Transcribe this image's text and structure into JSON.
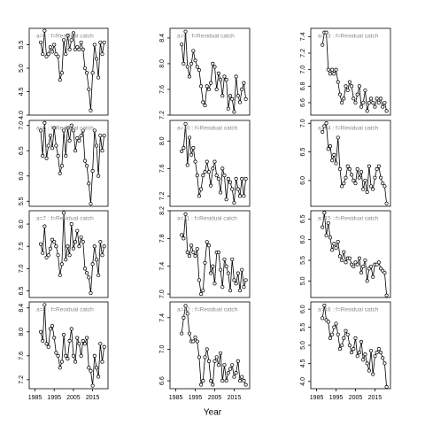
{
  "xlabel": "Year",
  "chart_data": [
    {
      "type": "line",
      "title": "a=5  :  f=Residual catch",
      "x": [
        1988,
        1989,
        1990,
        1991,
        1992,
        1993,
        1994,
        1995,
        1996,
        1997,
        1998,
        1999,
        2000,
        2001,
        2002,
        2003,
        2004,
        2005,
        2006,
        2007,
        2008,
        2009,
        2010,
        2011,
        2012,
        2013,
        2014,
        2015,
        2016,
        2017,
        2018,
        2019,
        2020,
        2021
      ],
      "values": [
        5.55,
        5.3,
        5.8,
        5.25,
        5.3,
        5.45,
        5.35,
        5.5,
        5.3,
        5.25,
        4.75,
        4.9,
        5.6,
        5.3,
        5.7,
        5.4,
        5.6,
        5.75,
        5.4,
        5.45,
        5.4,
        5.55,
        5.4,
        5.0,
        4.9,
        4.55,
        4.1,
        4.9,
        5.5,
        5.2,
        4.8,
        5.55,
        5.3,
        5.55
      ],
      "xlim": [
        1982,
        2023
      ],
      "ylim": [
        4.0,
        5.85
      ],
      "yticks": [
        {
          "value": 4,
          "label": "4.0"
        },
        4.5,
        {
          "value": 5,
          "label": "5.0"
        },
        5.5
      ]
    },
    {
      "type": "line",
      "title": "a=6  :  f=Residual catch",
      "x": [
        1988,
        1989,
        1990,
        1991,
        1992,
        1993,
        1994,
        1995,
        1996,
        1997,
        1998,
        1999,
        2000,
        2001,
        2002,
        2003,
        2004,
        2005,
        2006,
        2007,
        2008,
        2009,
        2010,
        2011,
        2012,
        2013,
        2014,
        2015,
        2016,
        2017,
        2018,
        2019,
        2020,
        2021
      ],
      "values": [
        6.9,
        6.4,
        7.05,
        6.35,
        6.6,
        6.8,
        6.55,
        6.95,
        6.6,
        6.4,
        6.05,
        6.2,
        6.9,
        6.4,
        6.95,
        6.7,
        7.0,
        6.9,
        6.5,
        6.75,
        6.7,
        6.8,
        6.9,
        6.3,
        6.2,
        5.85,
        5.45,
        6.1,
        6.9,
        6.6,
        6.0,
        6.8,
        6.5,
        6.8
      ],
      "xlim": [
        1982,
        2023
      ],
      "ylim": [
        5.4,
        7.1
      ],
      "yticks": [
        5.5,
        {
          "value": 6,
          "label": "6.0"
        },
        6.5,
        {
          "value": 7,
          "label": "7.0"
        }
      ]
    },
    {
      "type": "line",
      "title": "a=7  :  f=Residual catch",
      "x": [
        1988,
        1989,
        1990,
        1991,
        1992,
        1993,
        1994,
        1995,
        1996,
        1997,
        1998,
        1999,
        2000,
        2001,
        2002,
        2003,
        2004,
        2005,
        2006,
        2007,
        2008,
        2009,
        2010,
        2011,
        2012,
        2013,
        2014,
        2015,
        2016,
        2017,
        2018,
        2019,
        2020,
        2021
      ],
      "values": [
        7.55,
        7.35,
        7.95,
        7.25,
        7.3,
        7.45,
        7.65,
        7.6,
        7.5,
        7.3,
        6.85,
        7.1,
        8.25,
        7.2,
        7.5,
        7.3,
        8.0,
        7.45,
        7.6,
        7.85,
        7.5,
        7.7,
        7.6,
        7.0,
        6.9,
        6.8,
        6.45,
        7.1,
        7.5,
        7.2,
        6.85,
        7.6,
        7.3,
        7.5
      ],
      "xlim": [
        1982,
        2023
      ],
      "ylim": [
        6.35,
        8.3
      ],
      "yticks": [
        6.5,
        {
          "value": 7,
          "label": "7.0"
        },
        7.5,
        {
          "value": 8,
          "label": "8.0"
        }
      ]
    },
    {
      "type": "line",
      "title": "a=8  :  f=Residual catch",
      "x": [
        1988,
        1989,
        1990,
        1991,
        1992,
        1993,
        1994,
        1995,
        1996,
        1997,
        1998,
        1999,
        2000,
        2001,
        2002,
        2003,
        2004,
        2005,
        2006,
        2007,
        2008,
        2009,
        2010,
        2011,
        2012,
        2013,
        2014,
        2015,
        2016,
        2017,
        2018,
        2019,
        2020,
        2021
      ],
      "values": [
        8.0,
        7.85,
        8.45,
        7.8,
        7.75,
        8.05,
        8.1,
        7.9,
        7.65,
        7.6,
        7.4,
        7.5,
        7.95,
        7.6,
        7.55,
        7.85,
        8.05,
        7.6,
        7.5,
        7.9,
        7.8,
        7.6,
        7.85,
        7.8,
        7.9,
        7.4,
        7.35,
        7.1,
        7.6,
        7.4,
        7.25,
        7.8,
        7.5,
        7.75
      ],
      "xlim": [
        1982,
        2023
      ],
      "ylim": [
        7.05,
        8.5
      ],
      "yticks": [
        7.2,
        7.6,
        {
          "value": 8,
          "label": "8.0"
        },
        8.4
      ],
      "xticks": [
        1985,
        1995,
        2005,
        2015
      ]
    },
    {
      "type": "line",
      "title": "a=9  :  f=Residual catch",
      "x": [
        1988,
        1989,
        1990,
        1991,
        1992,
        1993,
        1994,
        1995,
        1996,
        1997,
        1998,
        1999,
        2000,
        2001,
        2002,
        2003,
        2004,
        2005,
        2006,
        2007,
        2008,
        2009,
        2010,
        2011,
        2012,
        2013,
        2014,
        2015,
        2016,
        2017,
        2018,
        2019,
        2020,
        2021
      ],
      "values": [
        8.3,
        8.0,
        8.5,
        7.95,
        7.8,
        8.0,
        8.2,
        8.05,
        7.95,
        7.9,
        7.65,
        7.4,
        7.35,
        7.65,
        7.6,
        7.7,
        8.0,
        7.95,
        7.6,
        7.85,
        7.75,
        7.5,
        7.8,
        7.75,
        7.3,
        7.5,
        7.45,
        7.25,
        7.8,
        7.5,
        7.4,
        7.6,
        7.7,
        7.45
      ],
      "xlim": [
        1982,
        2023
      ],
      "ylim": [
        7.2,
        8.55
      ],
      "yticks": [
        7.2,
        7.6,
        {
          "value": 8,
          "label": "8.0"
        },
        8.4
      ]
    },
    {
      "type": "line",
      "title": "a=10  :  f=Residual catch",
      "x": [
        1988,
        1989,
        1990,
        1991,
        1992,
        1993,
        1994,
        1995,
        1996,
        1997,
        1998,
        1999,
        2000,
        2001,
        2002,
        2003,
        2004,
        2005,
        2006,
        2007,
        2008,
        2009,
        2010,
        2011,
        2012,
        2013,
        2014,
        2015,
        2016,
        2017,
        2018,
        2019,
        2020,
        2021
      ],
      "values": [
        7.85,
        7.9,
        8.25,
        7.65,
        8.05,
        7.8,
        7.9,
        7.7,
        7.5,
        7.2,
        7.3,
        7.5,
        7.55,
        7.7,
        7.55,
        7.35,
        7.6,
        7.7,
        7.5,
        7.45,
        7.25,
        7.6,
        7.5,
        7.15,
        7.45,
        7.4,
        7.3,
        7.1,
        7.45,
        7.3,
        7.2,
        7.45,
        7.2,
        7.45
      ],
      "xlim": [
        1982,
        2023
      ],
      "ylim": [
        7.05,
        8.3
      ],
      "yticks": [
        7.2,
        7.6,
        {
          "value": 8,
          "label": "8.0"
        }
      ]
    },
    {
      "type": "line",
      "title": "a=11  :  f=Residual catch",
      "x": [
        1988,
        1989,
        1990,
        1991,
        1992,
        1993,
        1994,
        1995,
        1996,
        1997,
        1998,
        1999,
        2000,
        2001,
        2002,
        2003,
        2004,
        2005,
        2006,
        2007,
        2008,
        2009,
        2010,
        2011,
        2012,
        2013,
        2014,
        2015,
        2016,
        2017,
        2018,
        2019,
        2020,
        2021
      ],
      "values": [
        7.85,
        7.8,
        8.15,
        7.6,
        7.55,
        7.7,
        7.6,
        7.55,
        7.65,
        7.2,
        7.0,
        7.05,
        7.45,
        7.75,
        7.7,
        7.3,
        7.4,
        7.15,
        7.6,
        7.6,
        7.35,
        7.1,
        7.5,
        7.4,
        7.3,
        7.05,
        7.5,
        7.2,
        7.15,
        7.3,
        7.05,
        7.35,
        7.1,
        7.2
      ],
      "xlim": [
        1982,
        2023
      ],
      "ylim": [
        6.95,
        8.2
      ],
      "yticks": [
        {
          "value": 7,
          "label": "7.0"
        },
        7.4,
        7.8,
        8.2
      ]
    },
    {
      "type": "line",
      "title": "a=12  :  f=Residual catch",
      "x": [
        1988,
        1989,
        1990,
        1991,
        1992,
        1993,
        1994,
        1995,
        1996,
        1997,
        1998,
        1999,
        2000,
        2001,
        2002,
        2003,
        2004,
        2005,
        2006,
        2007,
        2008,
        2009,
        2010,
        2011,
        2012,
        2013,
        2014,
        2015,
        2016,
        2017,
        2018,
        2019,
        2020,
        2021
      ],
      "values": [
        7.2,
        7.4,
        7.55,
        7.45,
        7.2,
        7.1,
        7.1,
        7.15,
        7.1,
        6.9,
        6.55,
        6.6,
        6.9,
        7.0,
        6.85,
        6.6,
        6.55,
        6.85,
        6.9,
        6.8,
        6.95,
        6.6,
        6.8,
        6.6,
        6.7,
        6.75,
        6.8,
        6.65,
        6.7,
        6.85,
        6.6,
        6.65,
        6.6,
        6.55
      ],
      "xlim": [
        1982,
        2023
      ],
      "ylim": [
        6.5,
        7.6
      ],
      "yticks": [
        6.6,
        {
          "value": 7,
          "label": "7.0"
        },
        7.4
      ],
      "xticks": [
        1985,
        1995,
        2005,
        2015
      ]
    },
    {
      "type": "line",
      "title": "a=13  :  f=Residual catch",
      "x": [
        1988,
        1989,
        1990,
        1991,
        1992,
        1993,
        1994,
        1995,
        1996,
        1997,
        1998,
        1999,
        2000,
        2001,
        2002,
        2003,
        2004,
        2005,
        2006,
        2007,
        2008,
        2009,
        2010,
        2011,
        2012,
        2013,
        2014,
        2015,
        2016,
        2017,
        2018,
        2019,
        2020,
        2021
      ],
      "values": [
        7.3,
        7.45,
        7.45,
        7.0,
        6.95,
        7.0,
        6.95,
        7.0,
        6.85,
        6.7,
        6.6,
        6.65,
        6.8,
        6.75,
        6.85,
        6.8,
        6.65,
        6.6,
        6.7,
        6.8,
        6.55,
        6.6,
        6.75,
        6.5,
        6.6,
        6.65,
        6.6,
        6.55,
        6.65,
        6.6,
        6.65,
        6.55,
        6.6,
        6.5
      ],
      "xlim": [
        1982,
        2023
      ],
      "ylim": [
        6.45,
        7.5
      ],
      "yticks": [
        6.6,
        6.8,
        {
          "value": 7,
          "label": "7.0"
        },
        7.2,
        7.4
      ]
    },
    {
      "type": "line",
      "title": "a=14  :  f=Residual catch",
      "x": [
        1988,
        1989,
        1990,
        1991,
        1992,
        1993,
        1994,
        1995,
        1996,
        1997,
        1998,
        1999,
        2000,
        2001,
        2002,
        2003,
        2004,
        2005,
        2006,
        2007,
        2008,
        2009,
        2010,
        2011,
        2012,
        2013,
        2014,
        2015,
        2016,
        2017,
        2018,
        2019,
        2020,
        2021
      ],
      "values": [
        6.85,
        6.95,
        7.0,
        6.55,
        6.6,
        6.35,
        6.45,
        6.3,
        6.75,
        6.2,
        5.9,
        5.95,
        6.05,
        6.25,
        6.2,
        6.1,
        6.0,
        5.95,
        6.2,
        6.05,
        6.15,
        5.85,
        6.0,
        5.8,
        6.25,
        5.9,
        5.85,
        6.05,
        6.2,
        6.25,
        6.05,
        5.95,
        5.9,
        5.6
      ],
      "xlim": [
        1982,
        2023
      ],
      "ylim": [
        5.55,
        7.05
      ],
      "yticks": [
        {
          "value": 6,
          "label": "6.0"
        },
        6.5,
        {
          "value": 7,
          "label": "7.0"
        }
      ]
    },
    {
      "type": "line",
      "title": "a=15  :  f=Residual catch",
      "x": [
        1988,
        1989,
        1990,
        1991,
        1992,
        1993,
        1994,
        1995,
        1996,
        1997,
        1998,
        1999,
        2000,
        2001,
        2002,
        2003,
        2004,
        2005,
        2006,
        2007,
        2008,
        2009,
        2010,
        2011,
        2012,
        2013,
        2014,
        2015,
        2016,
        2017,
        2018,
        2019,
        2020,
        2021
      ],
      "values": [
        6.3,
        6.65,
        6.1,
        6.4,
        6.05,
        5.75,
        5.9,
        5.8,
        5.95,
        5.6,
        5.5,
        5.7,
        5.45,
        5.55,
        5.55,
        5.4,
        5.35,
        5.45,
        5.4,
        5.55,
        5.2,
        5.35,
        5.5,
        5.0,
        5.3,
        5.35,
        5.1,
        5.4,
        5.4,
        5.45,
        5.3,
        5.25,
        5.2,
        4.65
      ],
      "xlim": [
        1982,
        2023
      ],
      "ylim": [
        4.6,
        6.7
      ],
      "yticks": [
        {
          "value": 5,
          "label": "5.0"
        },
        5.5,
        {
          "value": 6,
          "label": "6.0"
        },
        6.5
      ]
    },
    {
      "type": "line",
      "title": "a=16  :  f=Residual catch",
      "x": [
        1988,
        1989,
        1990,
        1991,
        1992,
        1993,
        1994,
        1995,
        1996,
        1997,
        1998,
        1999,
        2000,
        2001,
        2002,
        2003,
        2004,
        2005,
        2006,
        2007,
        2008,
        2009,
        2010,
        2011,
        2012,
        2013,
        2014,
        2015,
        2016,
        2017,
        2018,
        2019,
        2020,
        2021
      ],
      "values": [
        5.75,
        6.1,
        5.7,
        5.65,
        5.2,
        5.3,
        5.5,
        5.6,
        5.3,
        4.9,
        5.0,
        5.2,
        5.4,
        5.3,
        5.0,
        4.8,
        4.9,
        5.2,
        4.7,
        4.8,
        5.1,
        4.6,
        4.75,
        4.5,
        4.3,
        4.85,
        4.2,
        4.7,
        4.8,
        4.9,
        4.8,
        4.65,
        4.5,
        3.85
      ],
      "xlim": [
        1982,
        2023
      ],
      "ylim": [
        3.8,
        6.2
      ],
      "yticks": [
        {
          "value": 4,
          "label": "4.0"
        },
        4.5,
        {
          "value": 5,
          "label": "5.0"
        },
        5.5,
        {
          "value": 6,
          "label": "6.0"
        }
      ],
      "xticks": [
        1985,
        1995,
        2005,
        2015
      ]
    }
  ]
}
